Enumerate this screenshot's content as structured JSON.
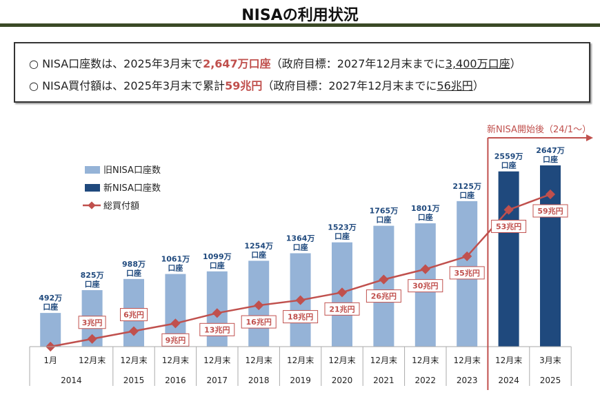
{
  "title": "NISAの利用状況",
  "summary": {
    "line1": {
      "bullet": "○",
      "pre": "NISA口座数は、2025年3月末で",
      "highlight": "2,647万口座",
      "mid": "（政府目標：2027年12月末までに",
      "target": "3,400万口座",
      "post": "）"
    },
    "line2": {
      "bullet": "○",
      "pre": "NISA買付額は、2025年3月末で累計",
      "highlight": "59兆円",
      "mid": "（政府目標：2027年12月末までに",
      "target": "56兆円",
      "post": "）"
    }
  },
  "chart_data": {
    "type": "bar+line",
    "categories": [
      "1月",
      "12月末",
      "12月末",
      "12月末",
      "12月末",
      "12月末",
      "12月末",
      "12月末",
      "12月末",
      "12月末",
      "12月末",
      "12月末",
      "3月末"
    ],
    "years": [
      {
        "label": "2014",
        "span": 2
      },
      {
        "label": "2015",
        "span": 1
      },
      {
        "label": "2016",
        "span": 1
      },
      {
        "label": "2017",
        "span": 1
      },
      {
        "label": "2018",
        "span": 1
      },
      {
        "label": "2019",
        "span": 1
      },
      {
        "label": "2020",
        "span": 1
      },
      {
        "label": "2021",
        "span": 1
      },
      {
        "label": "2022",
        "span": 1
      },
      {
        "label": "2023",
        "span": 1
      },
      {
        "label": "2024",
        "span": 1
      },
      {
        "label": "2025",
        "span": 1
      }
    ],
    "series": [
      {
        "name": "旧NISA口座数",
        "type": "bar",
        "color": "#95b3d7",
        "values": [
          492,
          825,
          988,
          1061,
          1099,
          1254,
          1364,
          1523,
          1765,
          1801,
          2125,
          null,
          null
        ]
      },
      {
        "name": "新NISA口座数",
        "type": "bar",
        "color": "#1f497d",
        "values": [
          null,
          null,
          null,
          null,
          null,
          null,
          null,
          null,
          null,
          null,
          null,
          2559,
          2647
        ]
      },
      {
        "name": "総買付額",
        "type": "line",
        "color": "#c0504d",
        "values": [
          0,
          3,
          6,
          9,
          13,
          16,
          18,
          21,
          26,
          30,
          35,
          53,
          59
        ]
      }
    ],
    "bar_label_suffix": "万",
    "bar_label_unit": "口座",
    "line_label_suffix": "兆円",
    "annotation": "新NISA開始後（24/1～）",
    "text_color": "#1f497d"
  }
}
